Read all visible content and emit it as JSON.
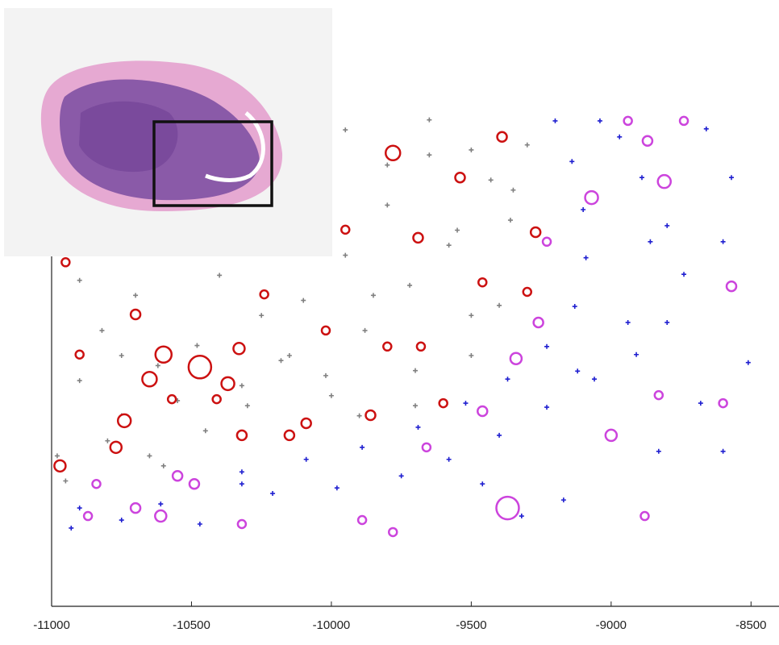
{
  "chart_data": {
    "type": "scatter",
    "xlim": [
      -11000,
      -8400
    ],
    "ylim": [
      0,
      100
    ],
    "xticks": [
      -11000,
      -10500,
      -10000,
      -9500,
      -9000,
      -8500
    ],
    "series": [
      {
        "color": "#808080",
        "marker": "plus",
        "x": [
          -10980,
          -10900,
          -10820,
          -10750,
          -10700,
          -10620,
          -10550,
          -10480,
          -10400,
          -10320,
          -10250,
          -10180,
          -10100,
          -10020,
          -9950,
          -9880,
          -9800,
          -9720,
          -9650,
          -9580,
          -9500,
          -9430,
          -9360,
          -9300,
          -10900,
          -10750,
          -10600,
          -10450,
          -10300,
          -10150,
          -10000,
          -9850,
          -9700,
          -9550,
          -9400,
          -9950,
          -9800,
          -9650,
          -9500,
          -9350,
          -9900,
          -9700,
          -9500,
          -10950,
          -10800,
          -10650
        ],
        "values": [
          30,
          45,
          55,
          38,
          62,
          48,
          41,
          52,
          66,
          44,
          58,
          49,
          61,
          46,
          70,
          55,
          80,
          64,
          90,
          72,
          58,
          85,
          77,
          92,
          65,
          50,
          28,
          35,
          40,
          50,
          42,
          62,
          47,
          75,
          60,
          95,
          88,
          97,
          91,
          83,
          38,
          40,
          50,
          25,
          33,
          30
        ]
      },
      {
        "color": "#1f1fd0",
        "marker": "plus",
        "x": [
          -9200,
          -9140,
          -9100,
          -9090,
          -9130,
          -9230,
          -9370,
          -9520,
          -9690,
          -9890,
          -10090,
          -10320,
          -10320,
          -10210,
          -9980,
          -9750,
          -9580,
          -9400,
          -9230,
          -9060,
          -8910,
          -8800,
          -8740,
          -8800,
          -8890,
          -8970,
          -9040,
          -8860,
          -8940,
          -9120,
          -10900,
          -10750,
          -10610,
          -10470,
          -10930,
          -8660,
          -8600,
          -8510,
          -8680,
          -8830,
          -8600,
          -8570,
          -9170,
          -9320,
          -9460
        ],
        "values": [
          96.8,
          88.7,
          79.1,
          69.5,
          59.8,
          51.8,
          45.3,
          40.5,
          35.7,
          31.7,
          29.3,
          26.8,
          24.4,
          22.5,
          23.6,
          26.0,
          29.3,
          34.1,
          39.7,
          45.3,
          50.2,
          56.6,
          66.2,
          75.9,
          85.5,
          93.6,
          96.8,
          72.7,
          56.6,
          46.9,
          19.6,
          17.2,
          20.4,
          16.4,
          15.6,
          95.2,
          72.7,
          48.6,
          40.5,
          30.9,
          30.9,
          85.5,
          21.2,
          18.0,
          24.4
        ]
      },
      {
        "color": "#cc44dd",
        "marker": "circle",
        "x": [
          -9070,
          -8810,
          -9370,
          -9000,
          -9340,
          -9460,
          -9260,
          -10550,
          -10490,
          -10700,
          -10610,
          -10320,
          -9890,
          -9780,
          -8570,
          -8740,
          -8940,
          -8870,
          -8830,
          -9230,
          -9660,
          -8880,
          -8600,
          -10840,
          -10870
        ],
        "values": [
          81.5,
          84.7,
          19.6,
          34.1,
          49.4,
          38.9,
          56.6,
          26.0,
          24.4,
          19.6,
          18.0,
          16.4,
          17.2,
          14.8,
          63.8,
          96.8,
          96.8,
          92.8,
          42.1,
          72.7,
          31.7,
          18.0,
          40.5,
          24.4,
          18.0
        ],
        "sizes": [
          8,
          8,
          14,
          7,
          7,
          6,
          6,
          6,
          6,
          6,
          7,
          5,
          5,
          5,
          6,
          5,
          5,
          6,
          5,
          5,
          5,
          5,
          5,
          5,
          5
        ]
      },
      {
        "color": "#cc1111",
        "marker": "circle",
        "x": [
          -9780,
          -10470,
          -10600,
          -10650,
          -10740,
          -10770,
          -10970,
          -10370,
          -10330,
          -10700,
          -10020,
          -10090,
          -9860,
          -9690,
          -9270,
          -9390,
          -9540,
          -9950,
          -9460,
          -9300,
          -10950,
          -10900,
          -10320,
          -10150,
          -9600,
          -10570,
          -10410,
          -10240,
          -9800,
          -9680
        ],
        "values": [
          90.4,
          47.7,
          50.2,
          45.3,
          37.0,
          31.7,
          28.0,
          44.4,
          51.4,
          58.2,
          55.0,
          36.5,
          38.1,
          73.5,
          74.6,
          93.6,
          85.5,
          75.1,
          64.6,
          62.7,
          68.6,
          50.2,
          34.1,
          34.1,
          40.5,
          41.3,
          41.3,
          62.2,
          51.8,
          51.8
        ],
        "sizes": [
          9,
          14,
          10,
          9,
          8,
          7,
          7,
          8,
          7,
          6,
          5,
          6,
          6,
          6,
          6,
          6,
          6,
          5,
          5,
          5,
          5,
          5,
          6,
          6,
          5,
          5,
          5,
          5,
          5,
          5
        ]
      }
    ]
  }
}
